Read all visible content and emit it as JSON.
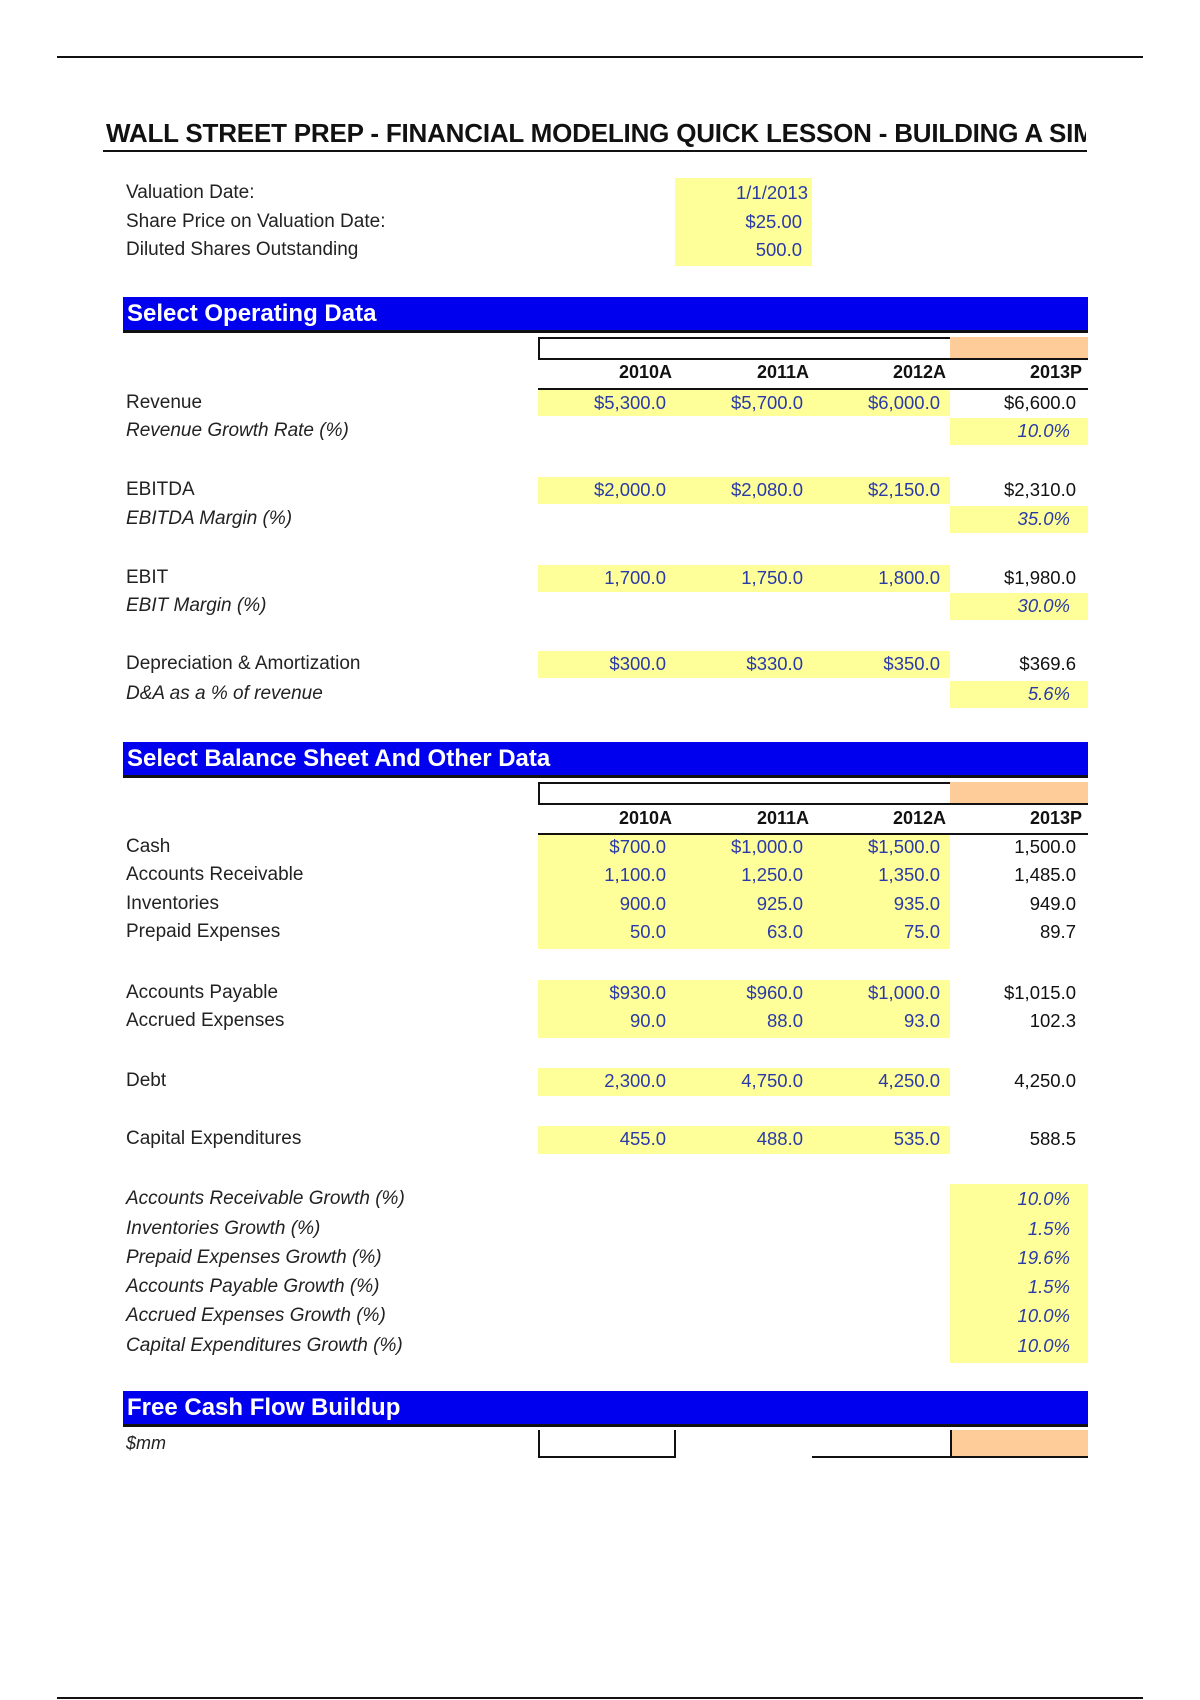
{
  "title": "WALL STREET PREP - FINANCIAL MODELING QUICK LESSON - BUILDING A SIM",
  "inputs": [
    {
      "label": "Valuation Date:",
      "value": "1/1/2013"
    },
    {
      "label": "Share Price on Valuation Date:",
      "value": "$25.00"
    },
    {
      "label": "Diluted Shares Outstanding",
      "value": "500.0"
    }
  ],
  "operating": {
    "header": "Select Operating Data",
    "years": [
      "2010A",
      "2011A",
      "2012A",
      "2013P"
    ],
    "rows": [
      {
        "label": "Revenue",
        "values": [
          "$5,300.0",
          "$5,700.0",
          "$6,000.0",
          "$6,600.0"
        ]
      },
      {
        "label": "Revenue Growth Rate (%)",
        "rate": "10.0%"
      },
      {
        "label": "EBITDA",
        "values": [
          "$2,000.0",
          "$2,080.0",
          "$2,150.0",
          "$2,310.0"
        ]
      },
      {
        "label": "EBITDA Margin (%)",
        "rate": "35.0%"
      },
      {
        "label": "EBIT",
        "values": [
          "1,700.0",
          "1,750.0",
          "1,800.0",
          "$1,980.0"
        ]
      },
      {
        "label": "EBIT Margin (%)",
        "rate": "30.0%"
      },
      {
        "label": "Depreciation & Amortization",
        "values": [
          "$300.0",
          "$330.0",
          "$350.0",
          "$369.6"
        ]
      },
      {
        "label": "D&A as a % of revenue",
        "rate": "5.6%"
      }
    ]
  },
  "balance": {
    "header": "Select Balance Sheet And Other Data",
    "years": [
      "2010A",
      "2011A",
      "2012A",
      "2013P"
    ],
    "rows": [
      {
        "label": "Cash",
        "values": [
          "$700.0",
          "$1,000.0",
          "$1,500.0",
          "1,500.0"
        ]
      },
      {
        "label": "Accounts Receivable",
        "values": [
          "1,100.0",
          "1,250.0",
          "1,350.0",
          "1,485.0"
        ]
      },
      {
        "label": "Inventories",
        "values": [
          "900.0",
          "925.0",
          "935.0",
          "949.0"
        ]
      },
      {
        "label": "Prepaid Expenses",
        "values": [
          "50.0",
          "63.0",
          "75.0",
          "89.7"
        ]
      },
      {
        "label": "Accounts Payable",
        "values": [
          "$930.0",
          "$960.0",
          "$1,000.0",
          "$1,015.0"
        ]
      },
      {
        "label": "Accrued Expenses",
        "values": [
          "90.0",
          "88.0",
          "93.0",
          "102.3"
        ]
      },
      {
        "label": "Debt",
        "values": [
          "2,300.0",
          "4,750.0",
          "4,250.0",
          "4,250.0"
        ]
      },
      {
        "label": "Capital Expenditures",
        "values": [
          "455.0",
          "488.0",
          "535.0",
          "588.5"
        ]
      }
    ],
    "growth": [
      {
        "label": "Accounts Receivable Growth (%)",
        "rate": "10.0%"
      },
      {
        "label": "Inventories Growth (%)",
        "rate": "1.5%"
      },
      {
        "label": "Prepaid Expenses Growth (%)",
        "rate": "19.6%"
      },
      {
        "label": "Accounts Payable Growth (%)",
        "rate": "1.5%"
      },
      {
        "label": "Accrued Expenses Growth (%)",
        "rate": "10.0%"
      },
      {
        "label": "Capital Expenditures Growth (%)",
        "rate": "10.0%"
      }
    ]
  },
  "fcf": {
    "header": "Free Cash Flow Buildup",
    "units": "$mm"
  },
  "colors": {
    "section_blue": "#0000ee",
    "input_yellow": "#ffff99",
    "projection_peach": "#fdcc99",
    "input_text": "#2a3aa8"
  }
}
